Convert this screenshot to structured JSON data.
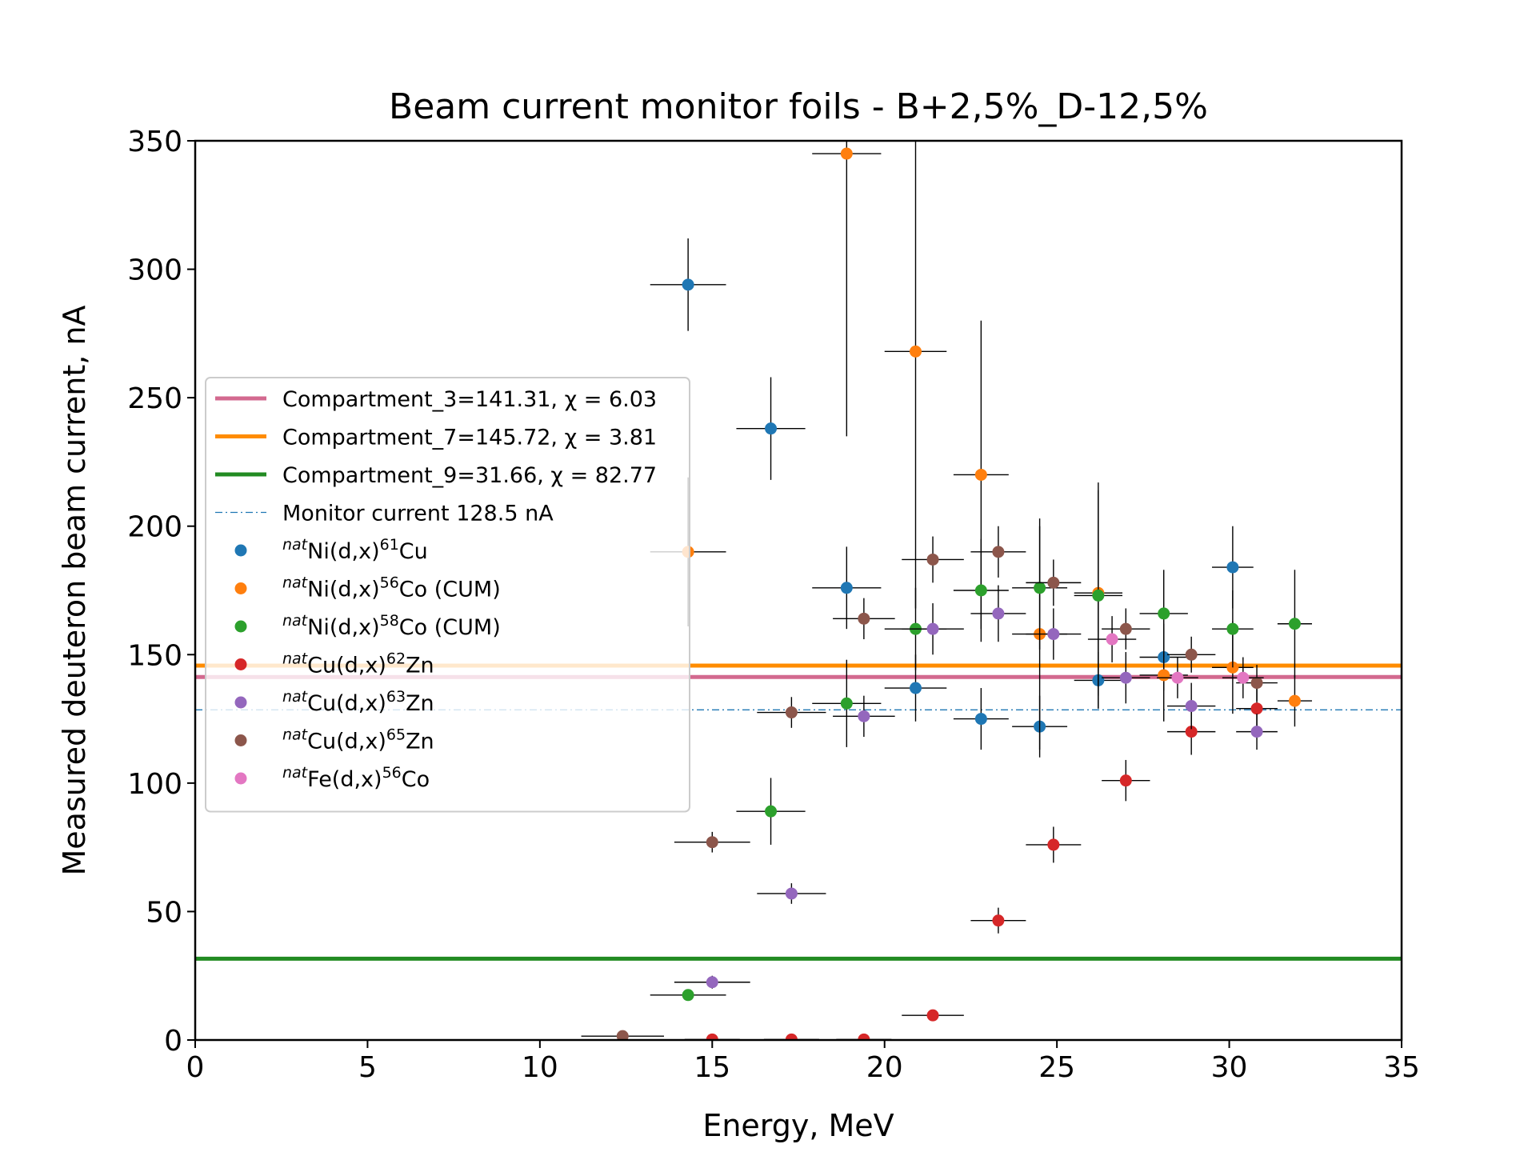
{
  "chart_data": {
    "type": "scatter",
    "title": "Beam current monitor foils - B+2,5%_D-12,5%",
    "xlabel": "Energy, MeV",
    "ylabel": "Measured deuteron beam current, nA",
    "xlim": [
      0,
      35
    ],
    "ylim": [
      0,
      350
    ],
    "xticks": [
      0,
      5,
      10,
      15,
      20,
      25,
      30,
      35
    ],
    "yticks": [
      0,
      50,
      100,
      150,
      200,
      250,
      300,
      350
    ],
    "grid": false,
    "legend_position": "center-left",
    "hlines": [
      {
        "label": "Compartment_3=141.31, χ = 6.03",
        "y": 141.31,
        "color": "#d3698f",
        "style": "solid"
      },
      {
        "label": "Compartment_7=145.72, χ = 3.81",
        "y": 145.72,
        "color": "#ff8c00",
        "style": "solid"
      },
      {
        "label": "Compartment_9=31.66, χ = 82.77",
        "y": 31.66,
        "color": "#228b22",
        "style": "solid"
      },
      {
        "label": "Monitor current 128.5 nA",
        "y": 128.5,
        "color": "#1f77b4",
        "style": "dashdot"
      }
    ],
    "series": [
      {
        "name": "natNi(d,x)61Cu",
        "name_parts": {
          "pre": "nat",
          "base": "Ni(d,x)",
          "mass": "61",
          "elem": "Cu",
          "suffix": ""
        },
        "color": "#1f77b4",
        "points": [
          [
            14.3,
            294,
            1.1,
            18
          ],
          [
            16.7,
            238,
            1.0,
            20
          ],
          [
            18.9,
            176,
            1.0,
            16
          ],
          [
            20.9,
            137,
            0.9,
            13
          ],
          [
            22.8,
            125,
            0.8,
            12
          ],
          [
            24.5,
            122,
            0.8,
            12
          ],
          [
            26.2,
            140,
            0.7,
            11
          ],
          [
            28.1,
            149,
            0.7,
            13
          ],
          [
            30.1,
            184,
            0.6,
            16
          ]
        ]
      },
      {
        "name": "natNi(d,x)56Co (CUM)",
        "name_parts": {
          "pre": "nat",
          "base": "Ni(d,x)",
          "mass": "56",
          "elem": "Co",
          "suffix": " (CUM)"
        },
        "color": "#ff7f0e",
        "points": [
          [
            14.3,
            190,
            1.1,
            29
          ],
          [
            18.9,
            345,
            1.0,
            110
          ],
          [
            20.9,
            268,
            0.9,
            100
          ],
          [
            22.8,
            220,
            0.8,
            60
          ],
          [
            24.5,
            158,
            0.8,
            45
          ],
          [
            26.2,
            174,
            0.7,
            40
          ],
          [
            28.1,
            142,
            0.7,
            18
          ],
          [
            30.1,
            145,
            0.6,
            18
          ],
          [
            31.9,
            132,
            0.5,
            10
          ]
        ]
      },
      {
        "name": "natNi(d,x)58Co (CUM)",
        "name_parts": {
          "pre": "nat",
          "base": "Ni(d,x)",
          "mass": "58",
          "elem": "Co",
          "suffix": " (CUM)"
        },
        "color": "#2ca02c",
        "points": [
          [
            14.3,
            17.5,
            1.1,
            2
          ],
          [
            16.7,
            89,
            1.0,
            13
          ],
          [
            18.9,
            131,
            1.0,
            17
          ],
          [
            20.9,
            160,
            0.9,
            16
          ],
          [
            22.8,
            175,
            0.8,
            20
          ],
          [
            24.5,
            176,
            0.8,
            24
          ],
          [
            26.2,
            173,
            0.7,
            44
          ],
          [
            28.1,
            166,
            0.7,
            17
          ],
          [
            30.1,
            160,
            0.6,
            15
          ],
          [
            31.9,
            162,
            0.5,
            21
          ]
        ]
      },
      {
        "name": "natCu(d,x)62Zn",
        "name_parts": {
          "pre": "nat",
          "base": "Cu(d,x)",
          "mass": "62",
          "elem": "Zn",
          "suffix": ""
        },
        "color": "#d62728",
        "points": [
          [
            15.0,
            0.2,
            0.8,
            0.1
          ],
          [
            17.3,
            0.2,
            0.8,
            0.1
          ],
          [
            19.4,
            0.2,
            0.8,
            0.1
          ],
          [
            21.4,
            9.6,
            0.9,
            1.5
          ],
          [
            23.3,
            46.5,
            0.8,
            5
          ],
          [
            24.9,
            76,
            0.8,
            7
          ],
          [
            27.0,
            101,
            0.7,
            8
          ],
          [
            28.9,
            120,
            0.7,
            9
          ],
          [
            30.8,
            129,
            0.6,
            9
          ]
        ]
      },
      {
        "name": "natCu(d,x)63Zn",
        "name_parts": {
          "pre": "nat",
          "base": "Cu(d,x)",
          "mass": "63",
          "elem": "Zn",
          "suffix": ""
        },
        "color": "#9467bd",
        "points": [
          [
            15.0,
            22.5,
            1.1,
            2.5
          ],
          [
            17.3,
            57,
            1.0,
            4
          ],
          [
            19.4,
            126,
            0.9,
            8
          ],
          [
            21.4,
            160,
            0.9,
            10
          ],
          [
            23.3,
            166,
            0.8,
            11
          ],
          [
            24.9,
            158,
            0.8,
            10
          ],
          [
            27.0,
            141,
            0.7,
            10
          ],
          [
            28.9,
            130,
            0.7,
            9
          ],
          [
            30.8,
            120,
            0.6,
            7
          ]
        ]
      },
      {
        "name": "natCu(d,x)65Zn",
        "name_parts": {
          "pre": "nat",
          "base": "Cu(d,x)",
          "mass": "65",
          "elem": "Zn",
          "suffix": ""
        },
        "color": "#8c564b",
        "points": [
          [
            12.4,
            1.5,
            1.2,
            0.3
          ],
          [
            15.0,
            77,
            1.1,
            4
          ],
          [
            17.3,
            127.5,
            1.0,
            6
          ],
          [
            19.4,
            164,
            0.9,
            8
          ],
          [
            21.4,
            187,
            0.9,
            9
          ],
          [
            23.3,
            190,
            0.8,
            10
          ],
          [
            24.9,
            178,
            0.8,
            9
          ],
          [
            27.0,
            160,
            0.7,
            8
          ],
          [
            28.9,
            150,
            0.7,
            7
          ],
          [
            30.8,
            139,
            0.6,
            7
          ]
        ]
      },
      {
        "name": "natFe(d,x)56Co",
        "name_parts": {
          "pre": "nat",
          "base": "Fe(d,x)",
          "mass": "56",
          "elem": "Co",
          "suffix": ""
        },
        "color": "#e377c2",
        "points": [
          [
            26.6,
            156,
            0.7,
            9
          ],
          [
            28.5,
            141,
            0.6,
            8
          ],
          [
            30.4,
            141,
            0.6,
            8
          ]
        ]
      }
    ]
  }
}
